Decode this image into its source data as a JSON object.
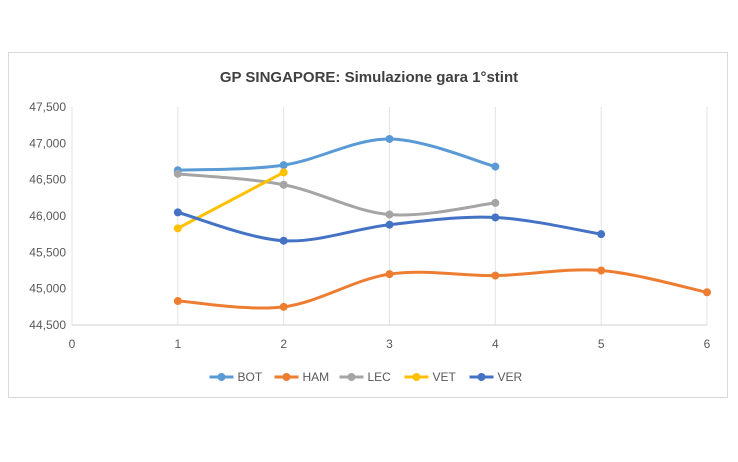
{
  "chart_data": {
    "type": "line",
    "title": "GP SINGAPORE: Simulazione gara 1°stint",
    "xlabel": "",
    "ylabel": "",
    "xlim": [
      0,
      6
    ],
    "ylim": [
      44500,
      47500
    ],
    "x_ticks": [
      "0",
      "1",
      "2",
      "3",
      "4",
      "5",
      "6"
    ],
    "y_ticks": [
      {
        "value": 47500,
        "label": "47,500"
      },
      {
        "value": 47000,
        "label": "47,000"
      },
      {
        "value": 46500,
        "label": "46,500"
      },
      {
        "value": 46000,
        "label": "46,000"
      },
      {
        "value": 45500,
        "label": "45,500"
      },
      {
        "value": 45000,
        "label": "45,000"
      },
      {
        "value": 44500,
        "label": "44,500"
      }
    ],
    "grid": "vertical",
    "legend_position": "bottom",
    "series": [
      {
        "name": "BOT",
        "color": "#5B9BD5",
        "x": [
          1,
          2,
          3,
          4
        ],
        "values": [
          46630,
          46700,
          47060,
          46680
        ]
      },
      {
        "name": "HAM",
        "color": "#ED7D31",
        "x": [
          1,
          2,
          3,
          4,
          5,
          6
        ],
        "values": [
          44830,
          44750,
          45200,
          45180,
          45250,
          44950
        ]
      },
      {
        "name": "LEC",
        "color": "#A5A5A5",
        "x": [
          1,
          2,
          3,
          4
        ],
        "values": [
          46580,
          46430,
          46020,
          46180
        ]
      },
      {
        "name": "VET",
        "color": "#FFC000",
        "x": [
          1,
          2
        ],
        "values": [
          45830,
          46600
        ]
      },
      {
        "name": "VER",
        "color": "#4472C4",
        "x": [
          1,
          2,
          3,
          4,
          5
        ],
        "values": [
          46050,
          45660,
          45880,
          45980,
          45750
        ]
      }
    ]
  }
}
